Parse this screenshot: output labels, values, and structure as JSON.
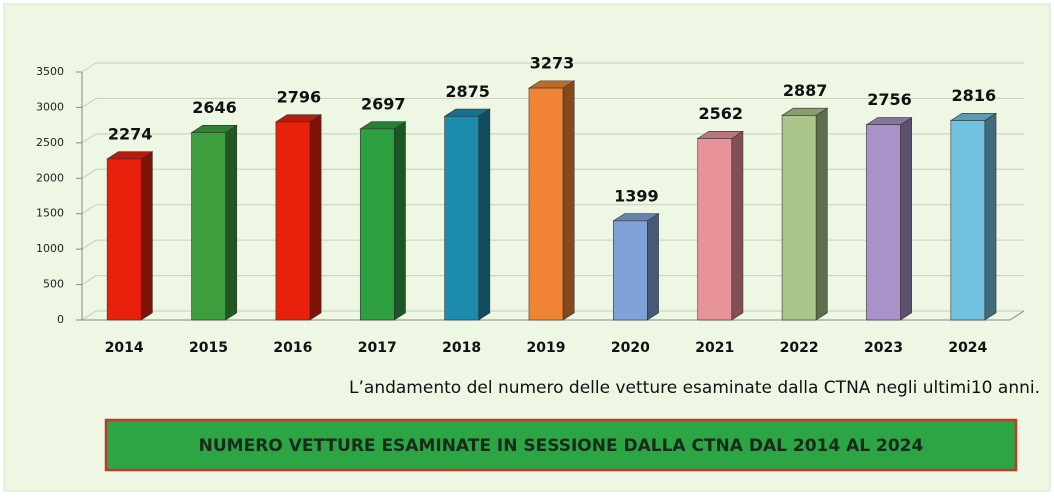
{
  "chart_data": {
    "type": "bar3d",
    "categories": [
      "2014",
      "2015",
      "2016",
      "2017",
      "2018",
      "2019",
      "2020",
      "2021",
      "2022",
      "2023",
      "2024"
    ],
    "values": [
      2274,
      2646,
      2796,
      2697,
      2875,
      3273,
      1399,
      2562,
      2887,
      2756,
      2816
    ],
    "colors": [
      "#e8200c",
      "#3e9e3e",
      "#e8200c",
      "#2ea040",
      "#1c8cae",
      "#f08434",
      "#80a2d8",
      "#e8929a",
      "#aac68a",
      "#a892c8",
      "#72c2e2"
    ],
    "ylim": [
      0,
      3500
    ],
    "yticks": [
      0,
      500,
      1000,
      1500,
      2000,
      2500,
      3000,
      3500
    ],
    "grid": true,
    "caption": "L’andamento del numero delle vetture esaminate dalla CTNA negli ultimi10 anni.",
    "title": "NUMERO VETTURE ESAMINATE IN SESSIONE DALLA CTNA DAL 2014 AL 2024"
  }
}
